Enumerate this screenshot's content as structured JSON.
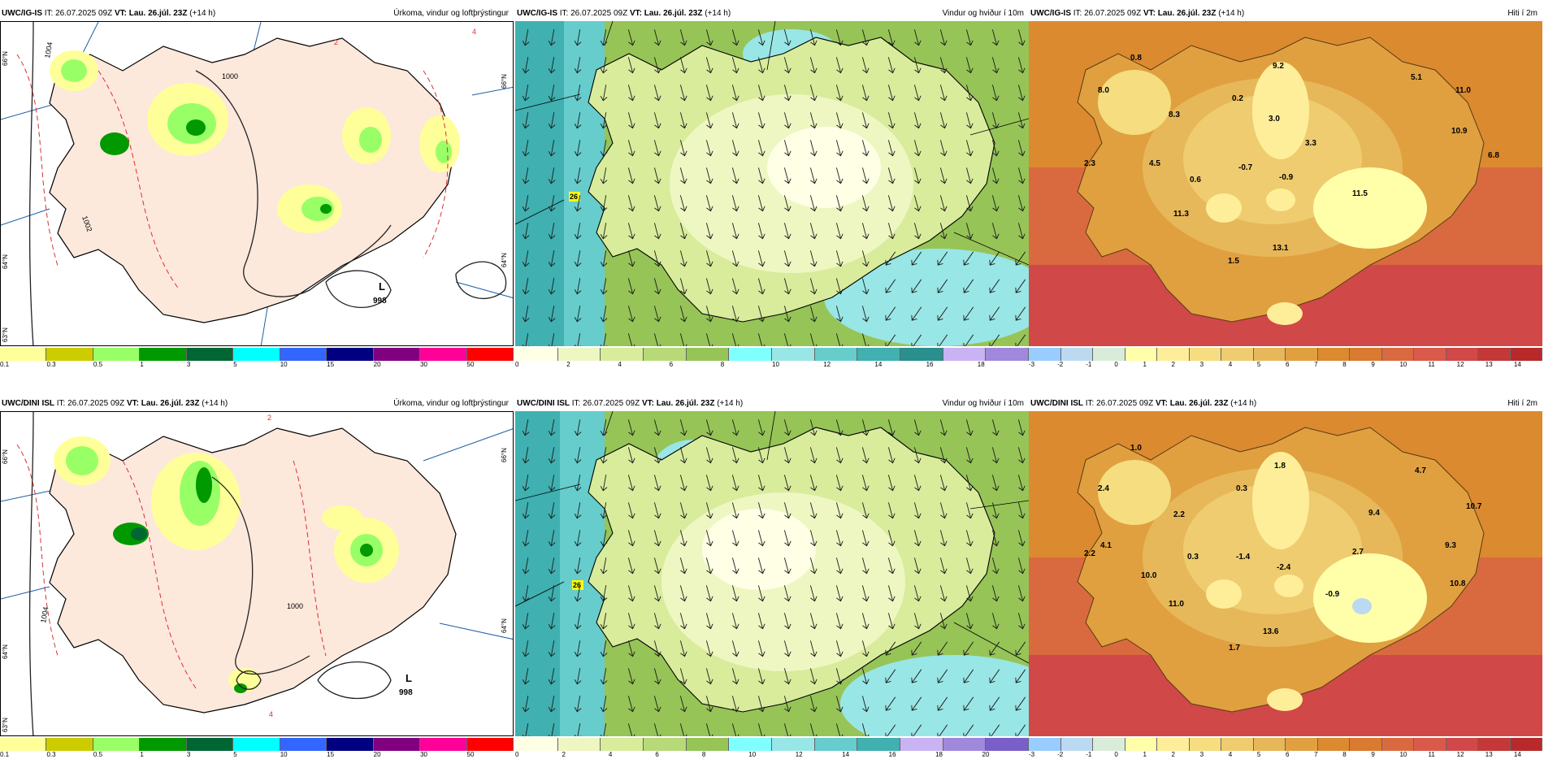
{
  "issue": {
    "prefix": "IT: 26.07.2025 09Z",
    "vt_label": "VT: Lau. 26.júl. 23Z",
    "lead": "(+14 h)"
  },
  "models": [
    {
      "name": "UWC/IG-IS",
      "key": "igis"
    },
    {
      "name": "UWC/DINI ISL",
      "key": "dini"
    }
  ],
  "panels": {
    "precip": {
      "title": "Úrkoma, vindur og loftþrýstingur"
    },
    "wind": {
      "title": "Vindur og hviður í 10m"
    },
    "temp": {
      "title": "Hiti í 2m"
    }
  },
  "legends": {
    "precip": {
      "colors": [
        "#ffff99",
        "#cccc00",
        "#99ff66",
        "#009900",
        "#006633",
        "#00ffff",
        "#3366ff",
        "#000080",
        "#800080",
        "#ff0099",
        "#ff0000"
      ],
      "labels": [
        "0.1",
        "0.3",
        "0.5",
        "1",
        "3",
        "5",
        "10",
        "15",
        "20",
        "30",
        "50"
      ]
    },
    "wind_top": {
      "colors": [
        "#ffffe6",
        "#eef7c2",
        "#d8ec9c",
        "#b8d977",
        "#96c457",
        "#80ffff",
        "#99e6e6",
        "#66cccc",
        "#40b0b0",
        "#2a8f8f",
        "#c9b3f2",
        "#a088dd"
      ],
      "labels": [
        "0",
        "2",
        "4",
        "6",
        "8",
        "10",
        "12",
        "14",
        "16",
        "18"
      ]
    },
    "wind_bottom": {
      "colors": [
        "#ffffe6",
        "#eef7c2",
        "#d8ec9c",
        "#b8d977",
        "#96c457",
        "#80ffff",
        "#99e6e6",
        "#66cccc",
        "#40b0b0",
        "#c9b3f2",
        "#a088dd",
        "#7a5fc8"
      ],
      "labels": [
        "0",
        "2",
        "4",
        "6",
        "8",
        "10",
        "12",
        "14",
        "16",
        "18",
        "20"
      ]
    },
    "temp": {
      "colors": [
        "#99ccff",
        "#bcd9f2",
        "#d9ecd9",
        "#ffffaa",
        "#ffee99",
        "#f5dd80",
        "#efcc70",
        "#e6b85a",
        "#e0a040",
        "#db8a30",
        "#d97a30",
        "#d96a40",
        "#d95a4a",
        "#d04848",
        "#c43838",
        "#b82a2a"
      ],
      "labels": [
        "-3",
        "-2",
        "-1",
        "0",
        "1",
        "2",
        "3",
        "4",
        "5",
        "6",
        "7",
        "8",
        "9",
        "10",
        "11",
        "12",
        "13",
        "14"
      ]
    }
  },
  "map_labels": {
    "igis_precip": {
      "low_letter": "L",
      "low_value": "998",
      "isobar1": "1000",
      "isobar2": "1004",
      "isobar3": "1002",
      "lat1": "66°N",
      "lat2": "64°N",
      "lat3": "63°N",
      "rain4": "4",
      "rain2": "2"
    },
    "dini_precip": {
      "low_letter": "L",
      "low_value": "998",
      "isobar1": "1000",
      "isobar2": "1004",
      "lat1": "66°N",
      "lat2": "64°N",
      "lat3": "63°N",
      "rain2": "2",
      "rain4": "4"
    },
    "igis_wind": {
      "gust": "26"
    },
    "dini_wind": {
      "gust": "26"
    },
    "igis_temp": [
      {
        "v": "0.8"
      },
      {
        "v": "9.2"
      },
      {
        "v": "5.1"
      },
      {
        "v": "8.0"
      },
      {
        "v": "8.3"
      },
      {
        "v": "0.2"
      },
      {
        "v": "3.0"
      },
      {
        "v": "11.0"
      },
      {
        "v": "10.9"
      },
      {
        "v": "3.3"
      },
      {
        "v": "6.8"
      },
      {
        "v": "2.3"
      },
      {
        "v": "4.5"
      },
      {
        "v": "0.6"
      },
      {
        "v": "-0.7"
      },
      {
        "v": "-0.9"
      },
      {
        "v": "11.5"
      },
      {
        "v": "11.3"
      },
      {
        "v": "13.1"
      },
      {
        "v": "1.5"
      }
    ],
    "dini_temp": [
      {
        "v": "1.0"
      },
      {
        "v": "1.8"
      },
      {
        "v": "4.7"
      },
      {
        "v": "2.4"
      },
      {
        "v": "0.3"
      },
      {
        "v": "2.2"
      },
      {
        "v": "9.4"
      },
      {
        "v": "10.7"
      },
      {
        "v": "4.1"
      },
      {
        "v": "0.3"
      },
      {
        "v": "-1.4"
      },
      {
        "v": "9.3"
      },
      {
        "v": "2.2"
      },
      {
        "v": "2.7"
      },
      {
        "v": "-2.4"
      },
      {
        "v": "10.0"
      },
      {
        "v": "10.8"
      },
      {
        "v": "-0.9"
      },
      {
        "v": "11.0"
      },
      {
        "v": "13.6"
      },
      {
        "v": "1.7"
      }
    ]
  }
}
